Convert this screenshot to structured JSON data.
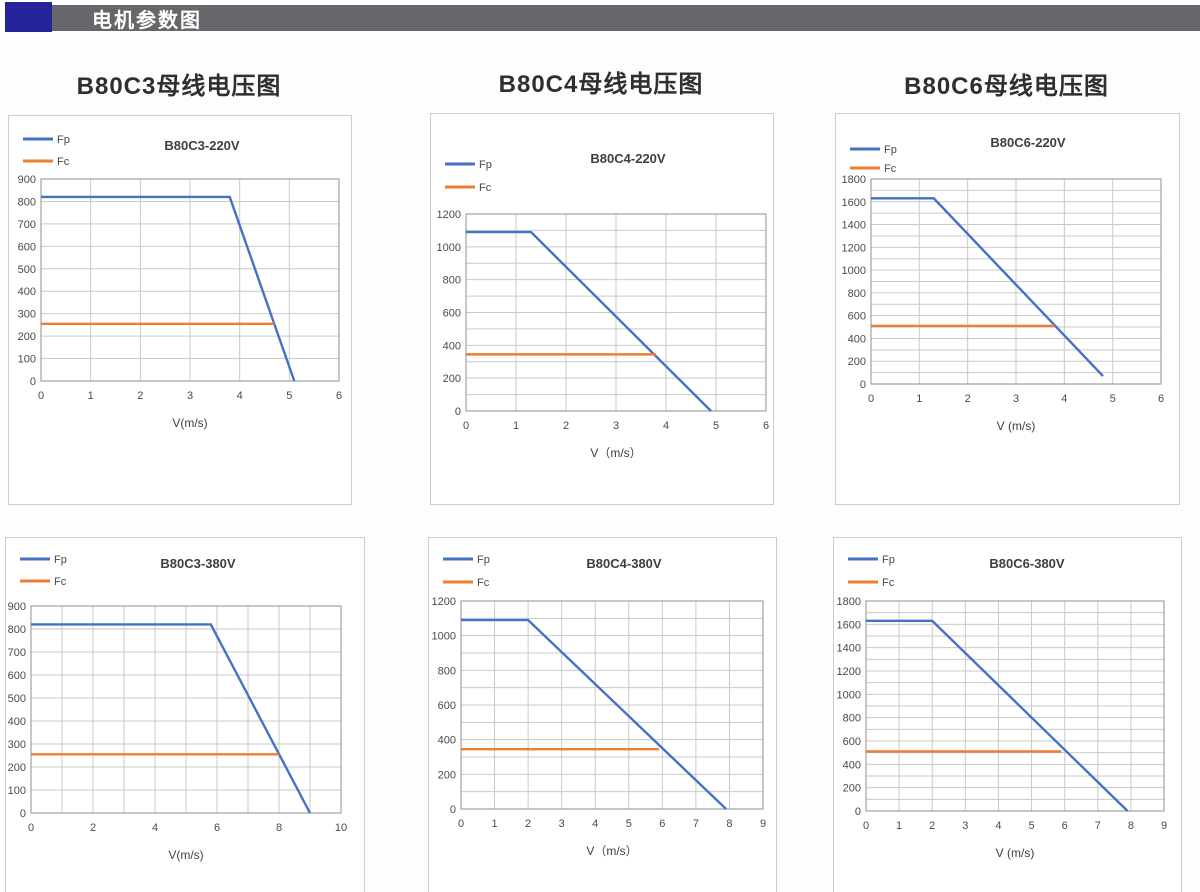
{
  "header": {
    "title": "电机参数图",
    "accent_color": "#252399",
    "bar_color": "#67676b"
  },
  "chart_style": {
    "grid_color": "#c9c9c9",
    "frame_color": "#8f8f8f",
    "fp_color": "#4472c4",
    "fc_color": "#ed7d31"
  },
  "chart_data": [
    {
      "type": "line",
      "heading": "B80C3母线电压图",
      "title": "B80C3-220V",
      "xlabel": "V(m/s)",
      "legend_position": "top-left",
      "grid": true,
      "x_range": [
        0,
        6
      ],
      "x_label_step": 1,
      "x_grid_step": 1,
      "y_range": [
        0,
        900
      ],
      "y_label_step": 100,
      "y_grid_step": 100,
      "series": [
        {
          "name": "Fp",
          "color": "#4472c4",
          "points": [
            [
              0,
              820
            ],
            [
              3.8,
              820
            ],
            [
              5.1,
              0
            ]
          ]
        },
        {
          "name": "Fc",
          "color": "#ed7d31",
          "points": [
            [
              0,
              255
            ],
            [
              4.7,
              255
            ]
          ]
        }
      ]
    },
    {
      "type": "line",
      "heading": "B80C4母线电压图",
      "title": "B80C4-220V",
      "xlabel": "V（m/s）",
      "legend_position": "top-left",
      "grid": true,
      "x_range": [
        0,
        6
      ],
      "x_label_step": 1,
      "x_grid_step": 1,
      "y_range": [
        0,
        1200
      ],
      "y_label_step": 200,
      "y_grid_step": 100,
      "series": [
        {
          "name": "Fp",
          "color": "#4472c4",
          "points": [
            [
              0,
              1090
            ],
            [
              1.3,
              1090
            ],
            [
              4.9,
              0
            ]
          ]
        },
        {
          "name": "Fc",
          "color": "#ed7d31",
          "points": [
            [
              0,
              345
            ],
            [
              3.8,
              345
            ]
          ]
        }
      ]
    },
    {
      "type": "line",
      "heading": "B80C6母线电压图",
      "title": "B80C6-220V",
      "xlabel": "V (m/s)",
      "legend_position": "top-left",
      "grid": true,
      "x_range": [
        0,
        6
      ],
      "x_label_step": 1,
      "x_grid_step": 1,
      "y_range": [
        0,
        1800
      ],
      "y_label_step": 200,
      "y_grid_step": 100,
      "series": [
        {
          "name": "Fp",
          "color": "#4472c4",
          "points": [
            [
              0,
              1630
            ],
            [
              1.3,
              1630
            ],
            [
              4.8,
              70
            ]
          ]
        },
        {
          "name": "Fc",
          "color": "#ed7d31",
          "points": [
            [
              0,
              510
            ],
            [
              3.8,
              510
            ]
          ]
        }
      ]
    },
    {
      "type": "line",
      "heading": null,
      "title": "B80C3-380V",
      "xlabel": "V(m/s)",
      "legend_position": "top-left",
      "grid": true,
      "x_range": [
        0,
        10
      ],
      "x_label_step": 2,
      "x_grid_step": 1,
      "y_range": [
        0,
        900
      ],
      "y_label_step": 100,
      "y_grid_step": 100,
      "series": [
        {
          "name": "Fp",
          "color": "#4472c4",
          "points": [
            [
              0,
              820
            ],
            [
              5.8,
              820
            ],
            [
              9.0,
              0
            ]
          ]
        },
        {
          "name": "Fc",
          "color": "#ed7d31",
          "points": [
            [
              0,
              255
            ],
            [
              8.0,
              255
            ]
          ]
        }
      ]
    },
    {
      "type": "line",
      "heading": null,
      "title": "B80C4-380V",
      "xlabel": "V（m/s）",
      "legend_position": "top-left",
      "grid": true,
      "x_range": [
        0,
        9
      ],
      "x_label_step": 1,
      "x_grid_step": 1,
      "y_range": [
        0,
        1200
      ],
      "y_label_step": 200,
      "y_grid_step": 100,
      "series": [
        {
          "name": "Fp",
          "color": "#4472c4",
          "points": [
            [
              0,
              1090
            ],
            [
              2.0,
              1090
            ],
            [
              7.9,
              0
            ]
          ]
        },
        {
          "name": "Fc",
          "color": "#ed7d31",
          "points": [
            [
              0,
              345
            ],
            [
              5.9,
              345
            ]
          ]
        }
      ]
    },
    {
      "type": "line",
      "heading": null,
      "title": "B80C6-380V",
      "xlabel": "V (m/s)",
      "legend_position": "top-left",
      "grid": true,
      "x_range": [
        0,
        9
      ],
      "x_label_step": 1,
      "x_grid_step": 1,
      "y_range": [
        0,
        1800
      ],
      "y_label_step": 200,
      "y_grid_step": 100,
      "series": [
        {
          "name": "Fp",
          "color": "#4472c4",
          "points": [
            [
              0,
              1630
            ],
            [
              2.0,
              1630
            ],
            [
              7.9,
              0
            ]
          ]
        },
        {
          "name": "Fc",
          "color": "#ed7d31",
          "points": [
            [
              0,
              510
            ],
            [
              5.9,
              510
            ]
          ]
        }
      ]
    }
  ]
}
